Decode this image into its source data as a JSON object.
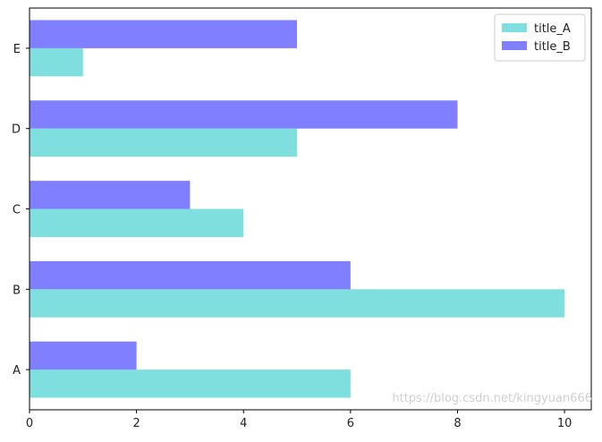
{
  "chart_data": {
    "type": "bar",
    "orientation": "horizontal",
    "categories": [
      "A",
      "B",
      "C",
      "D",
      "E"
    ],
    "series": [
      {
        "name": "title_A",
        "values": [
          6,
          10,
          4,
          5,
          1
        ],
        "color": "#7fdfdf"
      },
      {
        "name": "title_B",
        "values": [
          2,
          6,
          3,
          8,
          5
        ],
        "color": "#7f7fff"
      }
    ],
    "xlim": [
      0,
      10.5
    ],
    "xticks": [
      0,
      2,
      4,
      6,
      8,
      10
    ],
    "title": "",
    "xlabel": "",
    "ylabel": "",
    "grid": false,
    "legend_position": "top-right"
  },
  "watermark": "https://blog.csdn.net/kingyuan666"
}
